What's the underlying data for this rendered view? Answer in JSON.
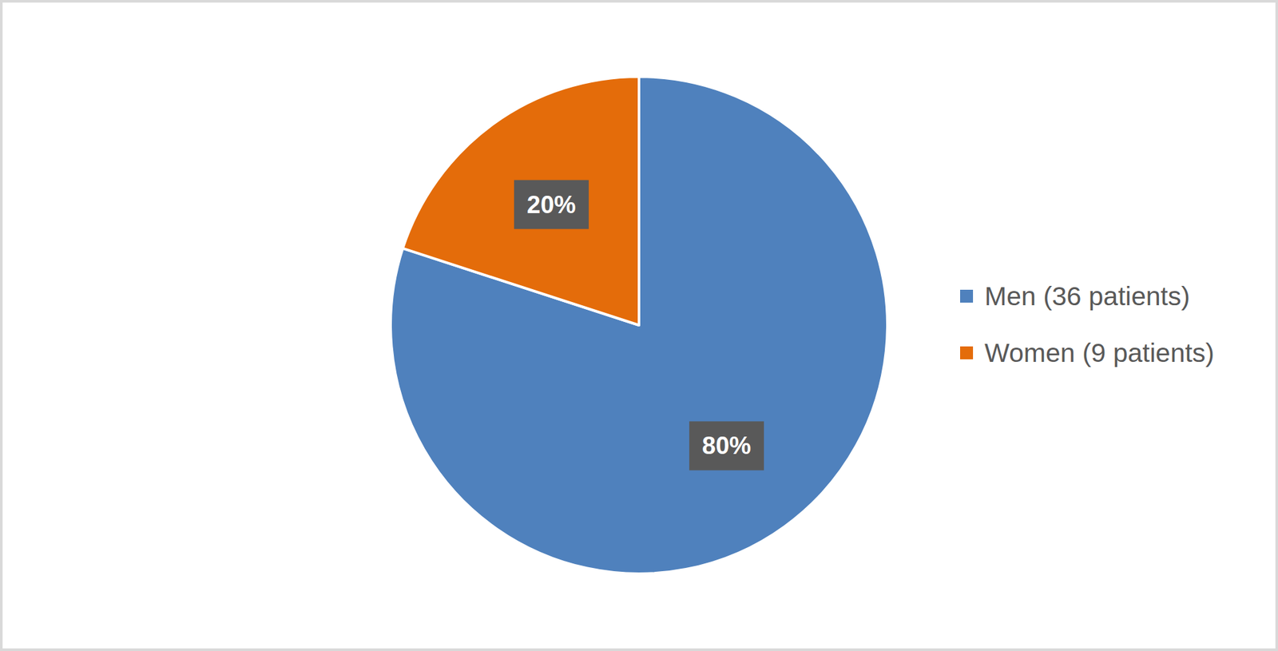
{
  "chart_data": {
    "type": "pie",
    "categories": [
      "Men (36 patients)",
      "Women (9 patients)"
    ],
    "values": [
      80,
      20
    ],
    "value_labels": [
      "80%",
      "20%"
    ],
    "colors": [
      "#4f81bd",
      "#e46c0a"
    ],
    "data_labels": true,
    "legend": "right"
  }
}
